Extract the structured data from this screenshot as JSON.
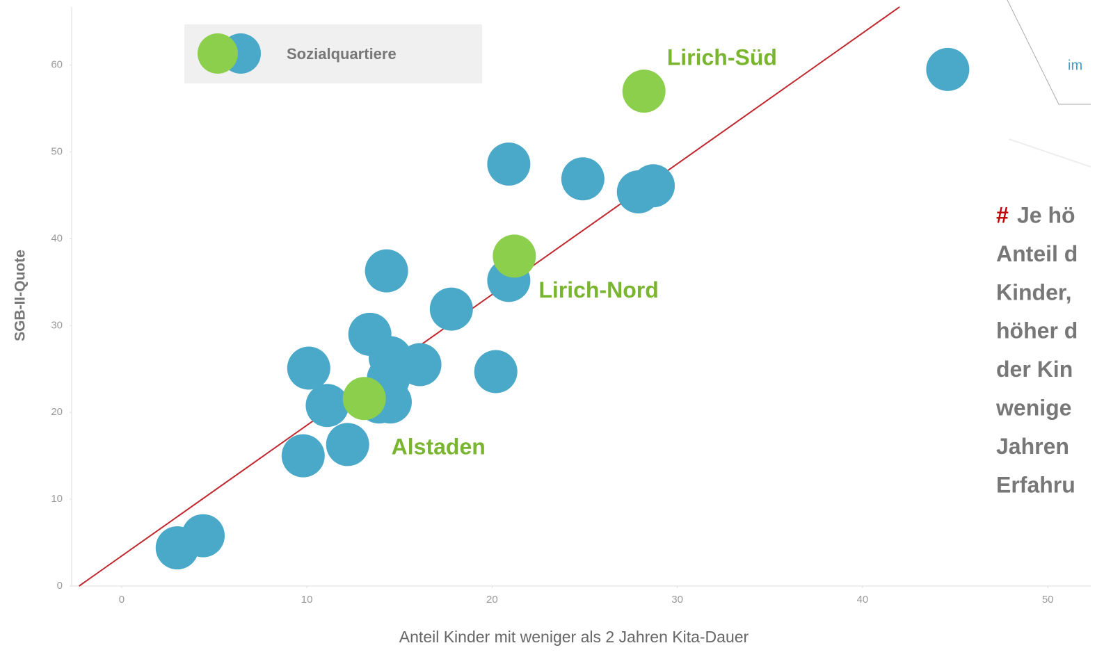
{
  "chart_data": {
    "type": "scatter",
    "xlabel": "Anteil Kinder mit weniger als 2 Jahren Kita-Dauer",
    "ylabel": "SGB-II-Quote",
    "xlim": [
      -2.7,
      53.9
    ],
    "ylim": [
      0,
      67.5
    ],
    "xticks": [
      0,
      10,
      20,
      30,
      40,
      50
    ],
    "yticks": [
      0,
      10,
      20,
      30,
      40,
      50,
      60
    ],
    "grid": false,
    "legend": "top-left",
    "series": [
      {
        "name": "Sozialquartiere",
        "color": "#4aa8c8",
        "x": [
          3.0,
          4.4,
          9.8,
          10.1,
          11.1,
          12.2,
          13.4,
          14.3,
          14.5,
          13.9,
          14.5,
          14.4,
          16.1,
          17.8,
          20.2,
          20.9,
          20.9,
          24.9,
          27.9,
          28.7,
          44.6
        ],
        "values": [
          4.4,
          5.8,
          15.0,
          25.1,
          20.8,
          16.3,
          29.0,
          36.3,
          26.3,
          21.2,
          21.2,
          23.9,
          25.5,
          31.9,
          24.7,
          35.2,
          48.6,
          46.9,
          45.4,
          46.1,
          59.5
        ]
      },
      {
        "color": "#8ccf4d",
        "x": [
          13.1,
          21.2,
          28.2
        ],
        "values": [
          21.6,
          38.0,
          57.0
        ],
        "labels": [
          "Alstaden",
          "Lirich-Nord",
          "Lirich-Süd"
        ]
      }
    ],
    "trendline": {
      "color": "#c0282d",
      "x": [
        -2.3,
        42.0
      ],
      "values": [
        0,
        66.7
      ]
    },
    "annotation": {
      "marker": "#",
      "lines": [
        "Je hö",
        "Anteil d",
        "Kinder,",
        "höher d",
        "der Kin",
        "wenige",
        "Jahren",
        "Erfahru"
      ]
    },
    "corner_text": "im"
  }
}
